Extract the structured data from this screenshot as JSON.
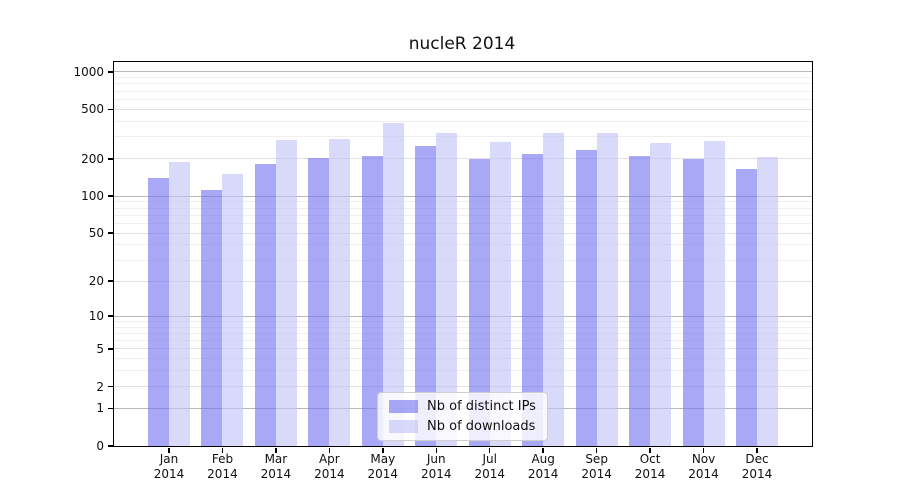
{
  "chart_data": {
    "type": "bar",
    "title": "nucleR 2014",
    "categories": [
      "Jan",
      "Feb",
      "Mar",
      "Apr",
      "May",
      "Jun",
      "Jul",
      "Aug",
      "Sep",
      "Oct",
      "Nov",
      "Dec"
    ],
    "year_label": "2014",
    "series": [
      {
        "name": "Nb of distinct IPs",
        "color": "rgba(115,115,240,0.62)",
        "values": [
          141,
          112,
          182,
          202,
          211,
          254,
          200,
          220,
          234,
          211,
          200,
          165
        ]
      },
      {
        "name": "Nb of downloads",
        "color": "rgba(194,194,247,0.62)",
        "values": [
          189,
          152,
          282,
          290,
          386,
          323,
          273,
          323,
          323,
          267,
          278,
          207
        ]
      }
    ],
    "yscale": "log1p",
    "ylim": [
      0,
      1200
    ],
    "yticks": [
      0,
      1,
      2,
      5,
      10,
      20,
      50,
      100,
      200,
      500,
      1000
    ],
    "major_gridlines": [
      1,
      10,
      100,
      1000
    ],
    "labeled_gridlines": [
      2,
      5,
      20,
      50,
      200,
      500
    ],
    "minor_gridlines": [
      3,
      4,
      6,
      7,
      8,
      9,
      30,
      40,
      60,
      70,
      80,
      90,
      300,
      400,
      600,
      700,
      800,
      900
    ],
    "grid": true,
    "legend_position": "bottom-center",
    "xlabel": "",
    "ylabel": "",
    "colors": {
      "spine": "#000000",
      "major_grid": "#b8b8b8",
      "labeled_grid": "#e2e2e2",
      "minor_grid": "#efefef"
    }
  }
}
